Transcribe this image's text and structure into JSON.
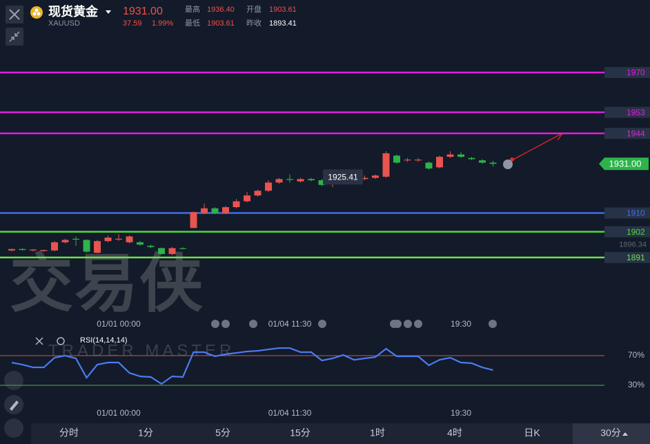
{
  "header": {
    "title": "现货黄金",
    "symbol": "XAUUSD",
    "price": "1931.00",
    "change": "37.59",
    "change_pct": "1.99%",
    "stats": [
      {
        "label": "最高",
        "value": "1936.40"
      },
      {
        "label": "开盘",
        "value": "1903.61"
      },
      {
        "label": "最低",
        "value": "1903.61"
      },
      {
        "label": "昨收",
        "value": "1893.41"
      }
    ]
  },
  "watermark": {
    "title": "交易侠",
    "subtitle": "TRADER MASTER"
  },
  "chart_data": [
    {
      "type": "candlestick",
      "up_color": "#e8544f",
      "down_color": "#2db34a",
      "categories": [
        null,
        null,
        null,
        null,
        null,
        null,
        null,
        null,
        null,
        null,
        "01/01 00:00",
        null,
        null,
        null,
        null,
        null,
        null,
        null,
        null,
        null,
        null,
        null,
        null,
        null,
        null,
        null,
        "01/04 11:30",
        null,
        null,
        null,
        null,
        null,
        null,
        null,
        null,
        null,
        null,
        null,
        null,
        null,
        null,
        null,
        "19:30",
        null,
        null,
        null
      ],
      "open": [
        1894.0,
        1894.6,
        1894.0,
        1893.8,
        1894.0,
        1897.5,
        1899.0,
        1898.5,
        1893.0,
        1898.0,
        1899.0,
        1897.5,
        1897.5,
        1896.0,
        1895.0,
        1892.5,
        1895.0,
        1903.6,
        1910.0,
        1912.0,
        1910.0,
        1912.5,
        1915.0,
        1917.5,
        1919.5,
        1923.0,
        1924.5,
        1923.5,
        1924.5,
        1924.0,
        1922.5,
        1923.0,
        1926.0,
        1924.5,
        1925.0,
        1925.5,
        1934.5,
        1932.5,
        1932.5,
        1931.5,
        1929.5,
        1934.0,
        1935.0,
        1933.5,
        1932.5,
        1931.5
      ],
      "high": [
        1894.8,
        1895.0,
        1894.6,
        1894.4,
        1898.0,
        1899.0,
        1900.0,
        1898.8,
        1898.5,
        1900.5,
        1901.0,
        1900.5,
        1898.0,
        1896.5,
        1895.3,
        1895.5,
        1895.3,
        1910.6,
        1914.0,
        1912.5,
        1913.0,
        1916.0,
        1919.0,
        1920.0,
        1924.0,
        1925.0,
        1926.5,
        1925.0,
        1925.0,
        1924.5,
        1923.8,
        1926.5,
        1926.5,
        1926.0,
        1926.5,
        1936.4,
        1935.0,
        1933.5,
        1933.5,
        1932.0,
        1934.5,
        1936.4,
        1936.0,
        1934.0,
        1933.0,
        1932.3
      ],
      "low": [
        1893.6,
        1894.0,
        1893.6,
        1893.5,
        1893.6,
        1897.0,
        1896.0,
        1893.0,
        1892.8,
        1897.5,
        1898.0,
        1897.0,
        1896.0,
        1895.0,
        1892.3,
        1892.0,
        1894.4,
        1903.6,
        1909.5,
        1909.5,
        1909.5,
        1912.0,
        1914.5,
        1917.0,
        1919.0,
        1922.5,
        1923.0,
        1923.0,
        1923.5,
        1921.5,
        1921.0,
        1922.5,
        1924.0,
        1924.0,
        1924.5,
        1925.0,
        1931.0,
        1931.8,
        1931.8,
        1928.5,
        1929.0,
        1933.5,
        1933.5,
        1932.5,
        1931.0,
        1929.8
      ],
      "close": [
        1894.6,
        1894.2,
        1894.4,
        1894.2,
        1897.5,
        1898.5,
        1898.8,
        1893.5,
        1898.0,
        1899.5,
        1899.0,
        1900.0,
        1896.5,
        1895.5,
        1892.5,
        1895.0,
        1894.8,
        1910.4,
        1912.0,
        1910.0,
        1912.5,
        1915.0,
        1917.5,
        1919.5,
        1923.0,
        1924.5,
        1924.2,
        1924.5,
        1924.0,
        1922.0,
        1923.5,
        1926.0,
        1924.6,
        1925.0,
        1926.0,
        1935.5,
        1931.5,
        1932.8,
        1932.8,
        1929.0,
        1934.0,
        1935.0,
        1934.0,
        1933.0,
        1931.5,
        1931.0
      ],
      "ylim": [
        1866.8,
        1986.8
      ],
      "levels": [
        {
          "value": 1970,
          "color": "#e020e0"
        },
        {
          "value": 1953,
          "color": "#e020e0"
        },
        {
          "value": 1944,
          "color": "#e020e0"
        },
        {
          "value": 1910,
          "color": "#3f6fe8"
        },
        {
          "value": 1902,
          "color": "#4ddb3a"
        },
        {
          "value": 1891,
          "color": "#6ee04a"
        }
      ],
      "last_price": {
        "value": 1931,
        "label": "1931.00"
      },
      "reference_price": 1896.34,
      "tooltip": 1925.41
    },
    {
      "type": "line",
      "title": "RSI(14,14,14)",
      "color": "#4a7cf0",
      "values": [
        60.7,
        57.9,
        54.2,
        54.2,
        67.2,
        70.0,
        66.3,
        40.2,
        57.9,
        60.7,
        60.7,
        46.7,
        42.1,
        41.2,
        31.9,
        42.1,
        41.2,
        74.7,
        74.7,
        69.1,
        71.9,
        73.7,
        75.6,
        76.5,
        78.4,
        80.2,
        80.2,
        74.7,
        74.7,
        63.5,
        66.3,
        70.9,
        64.4,
        66.3,
        68.1,
        79.3,
        69.1,
        69.1,
        69.1,
        57.0,
        64.4,
        67.2,
        60.7,
        59.8,
        54.2,
        50.5
      ],
      "ylim": [
        4.9,
        93.3
      ],
      "yticks": [
        {
          "value": 70,
          "label": "70%",
          "color": "#b5534f"
        },
        {
          "value": 30,
          "label": "30%",
          "color": "#3d9a3d"
        }
      ]
    }
  ],
  "tabs": [
    "分时",
    "1分",
    "5分",
    "15分",
    "1时",
    "4时",
    "日K",
    "30分"
  ],
  "active_tab": 7
}
